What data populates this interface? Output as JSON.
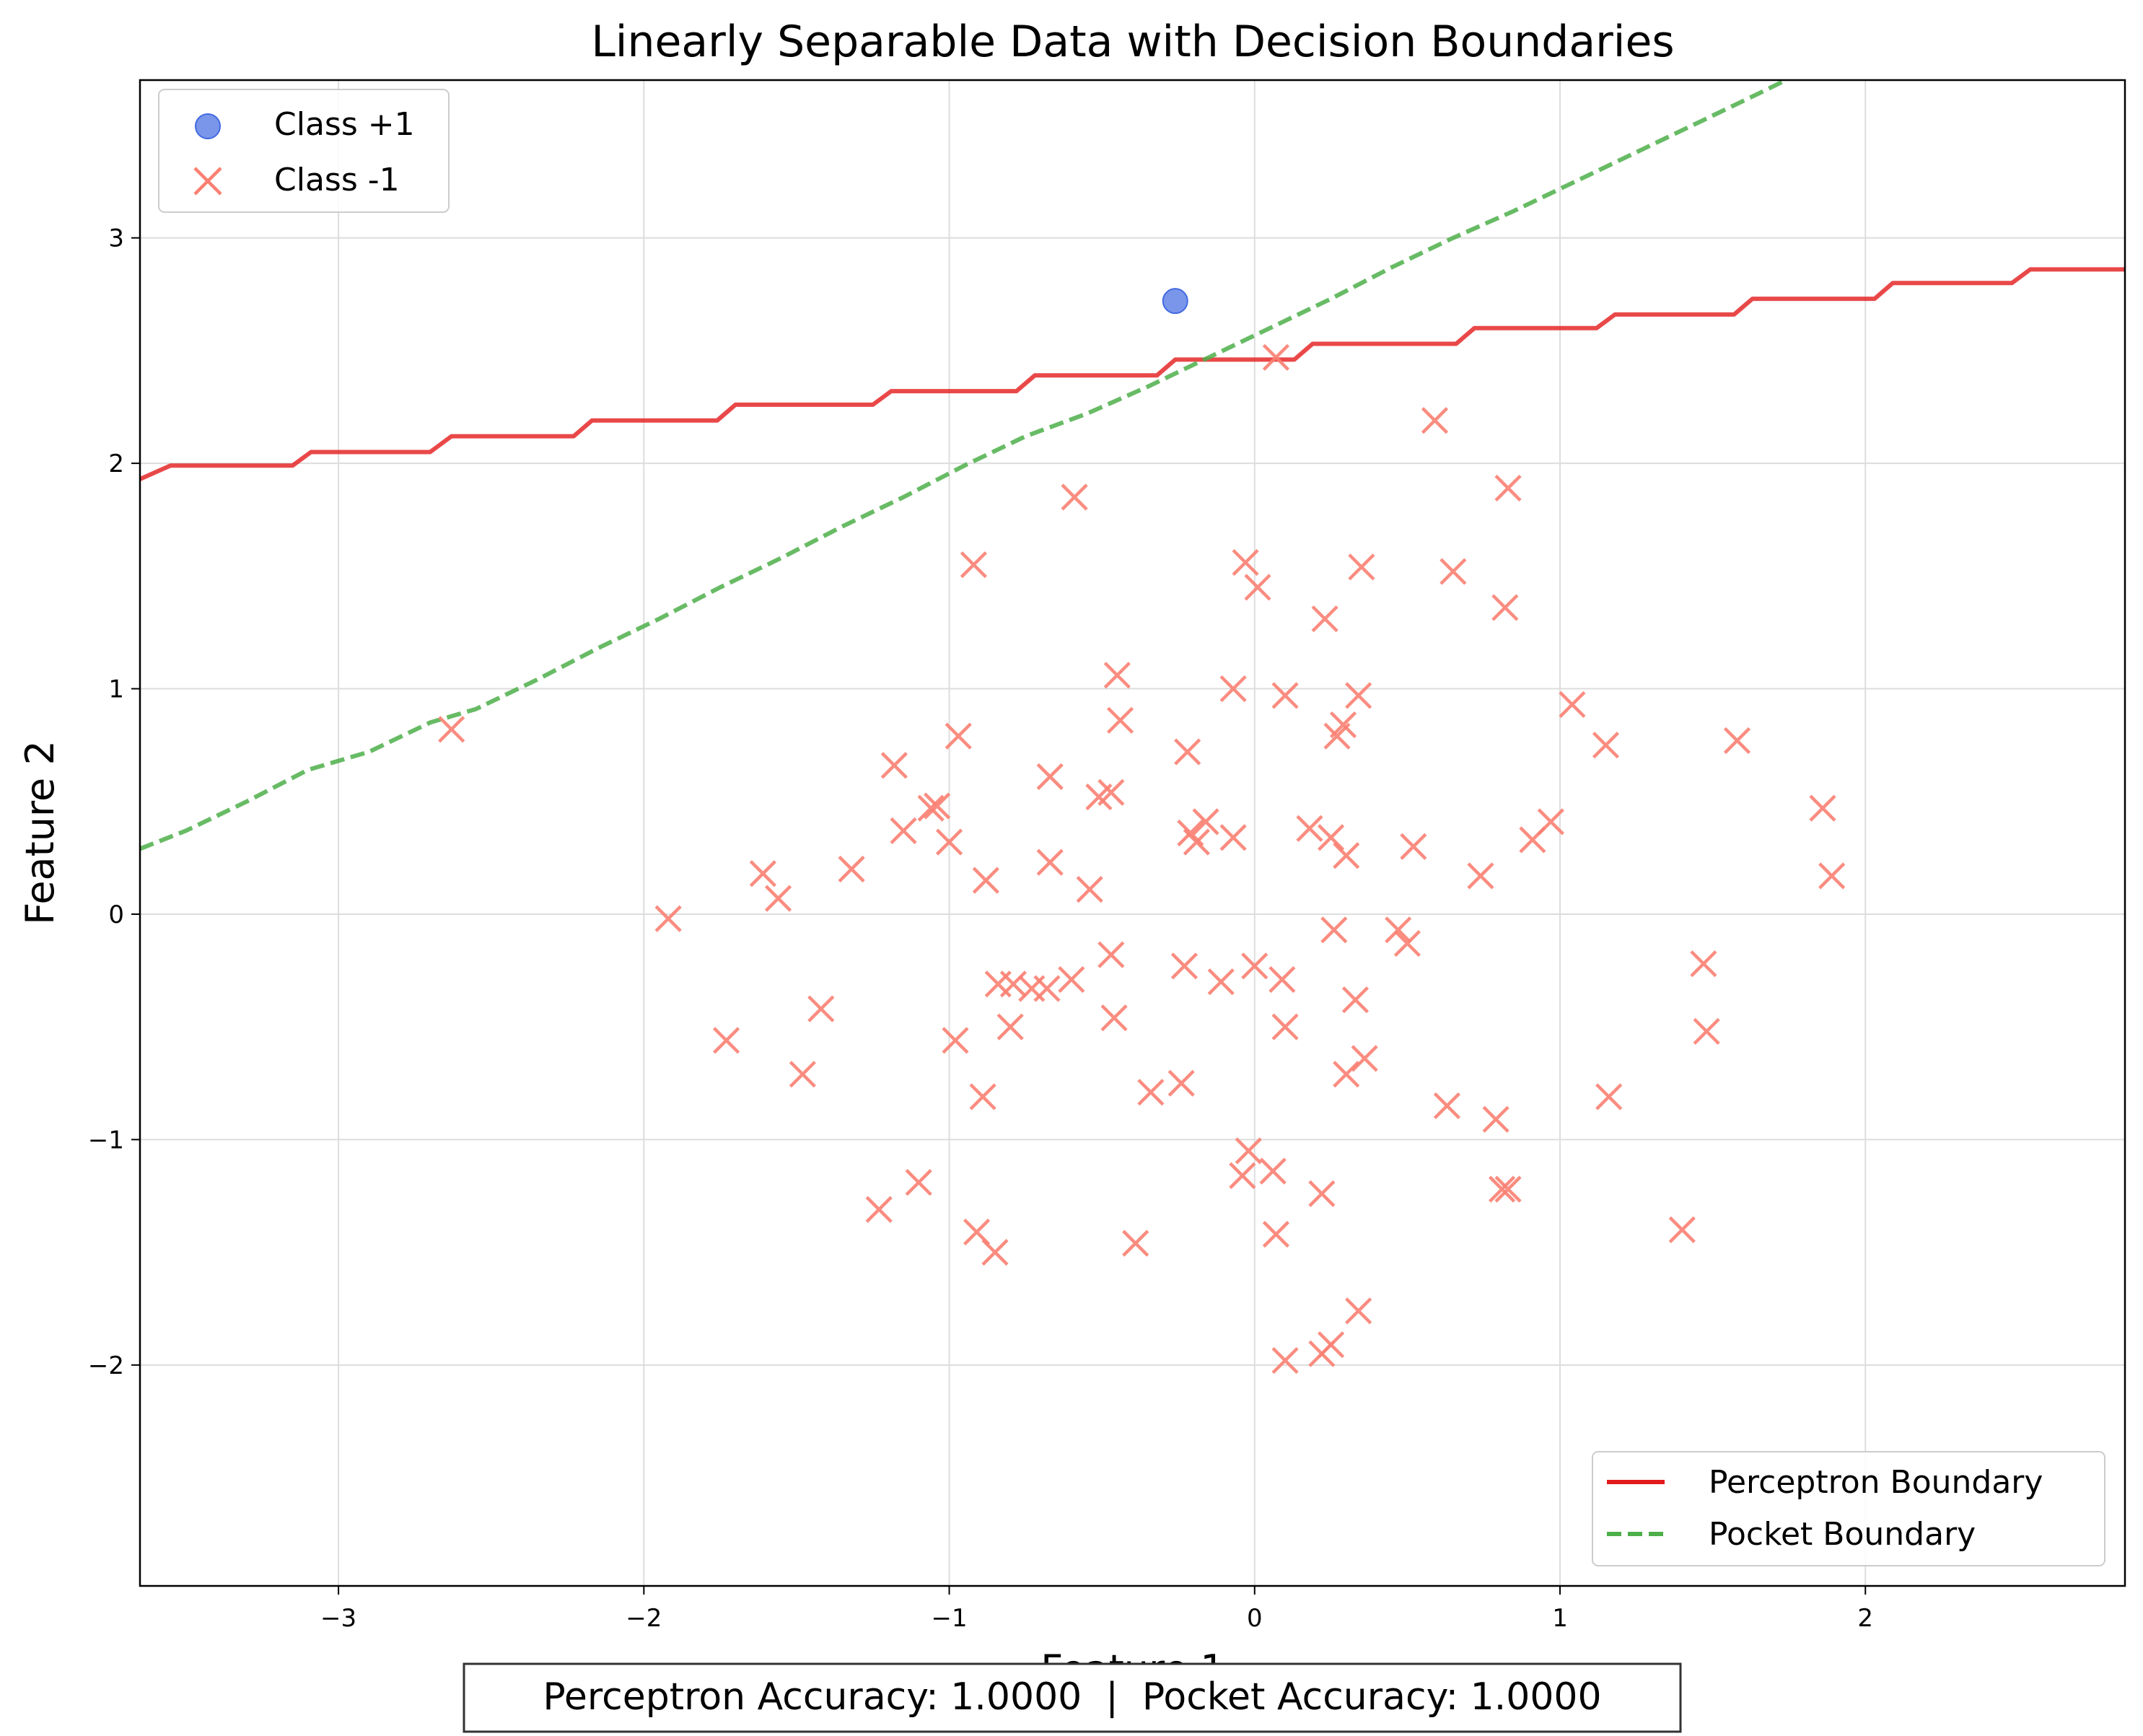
{
  "chart_data": {
    "type": "scatter",
    "title": "Linearly Separable Data with Decision Boundaries",
    "xlabel": "Feature 1",
    "ylabel": "Feature 2",
    "xlim": [
      -3.65,
      2.85
    ],
    "ylim": [
      -2.98,
      3.7
    ],
    "xticks": [
      -3,
      -2,
      -1,
      0,
      1,
      2
    ],
    "yticks": [
      -2,
      -1,
      0,
      1,
      2,
      3
    ],
    "grid": true,
    "colors": {
      "class_pos": "#4169E1",
      "class_neg": "#FA8072",
      "perceptron": "#E31A1C",
      "pocket": "#4DAF4A"
    },
    "points_legend": {
      "position": "upper-left",
      "entries": [
        "Class +1",
        "Class -1"
      ]
    },
    "lines_legend": {
      "position": "lower-right",
      "entries": [
        "Perceptron Boundary",
        "Pocket Boundary"
      ]
    },
    "series": [
      {
        "name": "Class +1",
        "marker": "circle",
        "points": [
          [
            -0.26,
            2.72
          ]
        ]
      },
      {
        "name": "Class -1",
        "marker": "x",
        "points": [
          [
            -2.63,
            0.82
          ],
          [
            -0.59,
            1.85
          ],
          [
            -0.92,
            1.55
          ],
          [
            0.59,
            2.19
          ],
          [
            0.83,
            1.89
          ],
          [
            0.07,
            2.47
          ],
          [
            -0.03,
            1.56
          ],
          [
            0.01,
            1.45
          ],
          [
            0.35,
            1.54
          ],
          [
            0.65,
            1.52
          ],
          [
            0.23,
            1.31
          ],
          [
            0.82,
            1.36
          ],
          [
            -0.45,
            1.06
          ],
          [
            -0.07,
            1.0
          ],
          [
            0.1,
            0.97
          ],
          [
            0.34,
            0.97
          ],
          [
            1.04,
            0.93
          ],
          [
            -0.44,
            0.86
          ],
          [
            -0.97,
            0.79
          ],
          [
            0.27,
            0.79
          ],
          [
            0.29,
            0.84
          ],
          [
            1.15,
            0.75
          ],
          [
            1.58,
            0.77
          ],
          [
            -0.22,
            0.72
          ],
          [
            -1.18,
            0.66
          ],
          [
            -0.67,
            0.61
          ],
          [
            -0.47,
            0.54
          ],
          [
            -0.51,
            0.52
          ],
          [
            -1.06,
            0.47
          ],
          [
            -1.04,
            0.48
          ],
          [
            -1.15,
            0.37
          ],
          [
            -1.0,
            0.32
          ],
          [
            1.86,
            0.47
          ],
          [
            0.97,
            0.41
          ],
          [
            -0.16,
            0.41
          ],
          [
            -0.21,
            0.36
          ],
          [
            -0.19,
            0.32
          ],
          [
            -0.07,
            0.34
          ],
          [
            0.18,
            0.38
          ],
          [
            0.25,
            0.34
          ],
          [
            0.3,
            0.26
          ],
          [
            0.52,
            0.3
          ],
          [
            0.91,
            0.33
          ],
          [
            0.74,
            0.17
          ],
          [
            1.89,
            0.17
          ],
          [
            -1.61,
            0.18
          ],
          [
            -1.56,
            0.07
          ],
          [
            -1.32,
            0.2
          ],
          [
            -0.88,
            0.15
          ],
          [
            -0.67,
            0.23
          ],
          [
            -0.54,
            0.11
          ],
          [
            -1.92,
            -0.02
          ],
          [
            0.26,
            -0.07
          ],
          [
            0.47,
            -0.07
          ],
          [
            0.5,
            -0.13
          ],
          [
            1.47,
            -0.22
          ],
          [
            -0.47,
            -0.18
          ],
          [
            -0.23,
            -0.23
          ],
          [
            -0.11,
            -0.3
          ],
          [
            0.0,
            -0.23
          ],
          [
            0.09,
            -0.29
          ],
          [
            -0.84,
            -0.31
          ],
          [
            -0.79,
            -0.31
          ],
          [
            -0.73,
            -0.33
          ],
          [
            -0.68,
            -0.33
          ],
          [
            -0.6,
            -0.29
          ],
          [
            -1.42,
            -0.42
          ],
          [
            -1.73,
            -0.56
          ],
          [
            -0.98,
            -0.56
          ],
          [
            -0.8,
            -0.5
          ],
          [
            -0.46,
            -0.46
          ],
          [
            0.1,
            -0.5
          ],
          [
            0.33,
            -0.38
          ],
          [
            1.48,
            -0.52
          ],
          [
            -1.48,
            -0.71
          ],
          [
            0.3,
            -0.71
          ],
          [
            0.36,
            -0.64
          ],
          [
            -0.89,
            -0.81
          ],
          [
            -0.34,
            -0.79
          ],
          [
            -0.24,
            -0.75
          ],
          [
            0.63,
            -0.85
          ],
          [
            0.79,
            -0.91
          ],
          [
            1.16,
            -0.81
          ],
          [
            -0.02,
            -1.05
          ],
          [
            -0.04,
            -1.16
          ],
          [
            0.06,
            -1.14
          ],
          [
            0.81,
            -1.22
          ],
          [
            0.83,
            -1.22
          ],
          [
            -1.1,
            -1.19
          ],
          [
            -1.23,
            -1.31
          ],
          [
            -0.91,
            -1.41
          ],
          [
            -0.85,
            -1.5
          ],
          [
            -0.39,
            -1.46
          ],
          [
            0.07,
            -1.42
          ],
          [
            0.22,
            -1.24
          ],
          [
            1.4,
            -1.4
          ],
          [
            0.34,
            -1.76
          ],
          [
            0.1,
            -1.98
          ],
          [
            0.22,
            -1.95
          ],
          [
            0.25,
            -1.91
          ]
        ]
      },
      {
        "name": "Perceptron Boundary",
        "type": "line",
        "style": "solid",
        "points": [
          [
            -3.65,
            1.93
          ],
          [
            -3.55,
            1.99
          ],
          [
            -3.15,
            1.99
          ],
          [
            -3.09,
            2.05
          ],
          [
            -2.7,
            2.05
          ],
          [
            -2.63,
            2.12
          ],
          [
            -2.23,
            2.12
          ],
          [
            -2.17,
            2.19
          ],
          [
            -1.76,
            2.19
          ],
          [
            -1.7,
            2.26
          ],
          [
            -1.25,
            2.26
          ],
          [
            -1.19,
            2.32
          ],
          [
            -0.78,
            2.32
          ],
          [
            -0.72,
            2.39
          ],
          [
            -0.32,
            2.39
          ],
          [
            -0.26,
            2.46
          ],
          [
            0.13,
            2.46
          ],
          [
            0.19,
            2.53
          ],
          [
            0.66,
            2.53
          ],
          [
            0.72,
            2.6
          ],
          [
            1.12,
            2.6
          ],
          [
            1.18,
            2.66
          ],
          [
            1.57,
            2.66
          ],
          [
            1.63,
            2.73
          ],
          [
            2.03,
            2.73
          ],
          [
            2.09,
            2.8
          ],
          [
            2.48,
            2.8
          ],
          [
            2.54,
            2.86
          ],
          [
            2.85,
            2.86
          ]
        ]
      },
      {
        "name": "Pocket Boundary",
        "type": "line",
        "style": "dashed",
        "points": [
          [
            -3.65,
            0.29
          ],
          [
            -3.5,
            0.37
          ],
          [
            -3.3,
            0.5
          ],
          [
            -3.1,
            0.64
          ],
          [
            -2.9,
            0.72
          ],
          [
            -2.7,
            0.85
          ],
          [
            -2.55,
            0.91
          ],
          [
            -2.35,
            1.04
          ],
          [
            -2.15,
            1.18
          ],
          [
            -1.95,
            1.31
          ],
          [
            -1.75,
            1.45
          ],
          [
            -1.55,
            1.58
          ],
          [
            -1.35,
            1.72
          ],
          [
            -1.15,
            1.85
          ],
          [
            -0.95,
            1.99
          ],
          [
            -0.75,
            2.12
          ],
          [
            -0.55,
            2.22
          ],
          [
            -0.35,
            2.34
          ],
          [
            -0.15,
            2.47
          ],
          [
            0.05,
            2.6
          ],
          [
            0.25,
            2.73
          ],
          [
            0.45,
            2.87
          ],
          [
            0.65,
            3.0
          ],
          [
            0.85,
            3.12
          ],
          [
            1.05,
            3.25
          ],
          [
            1.25,
            3.38
          ],
          [
            1.45,
            3.51
          ],
          [
            1.65,
            3.64
          ],
          [
            1.74,
            3.7
          ]
        ]
      }
    ],
    "annotation": "Perceptron Accuracy: 1.0000  |  Pocket Accuracy: 1.0000"
  }
}
